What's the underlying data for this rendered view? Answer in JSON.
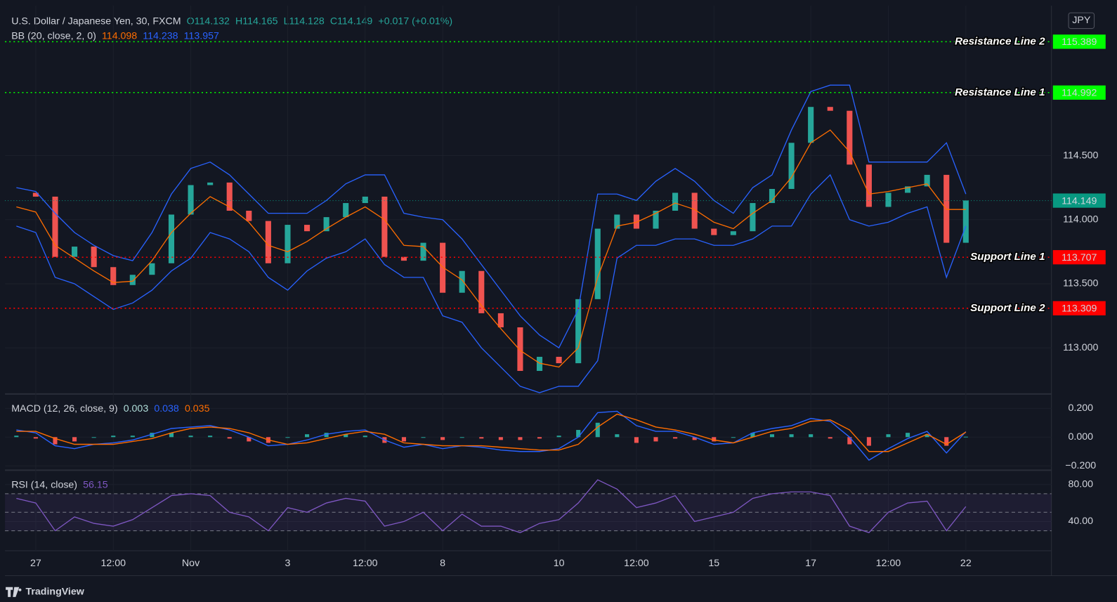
{
  "header": {
    "symbol": "U.S. Dollar / Japanese Yen, 30, FXCM",
    "ohlc": [
      "O114.132",
      "H114.165",
      "L114.128",
      "C114.149"
    ],
    "change": "+0.017 (+0.01%)"
  },
  "currency": "JPY",
  "branding": "TradingView",
  "chart_data": [
    {
      "type": "candlestick",
      "categories": [
        null,
        "27",
        null,
        null,
        null,
        "12:00",
        null,
        null,
        null,
        "Nov",
        null,
        null,
        null,
        null,
        "3",
        null,
        null,
        null,
        "12:00",
        null,
        null,
        null,
        "8",
        null,
        null,
        null,
        null,
        null,
        "10",
        null,
        null,
        null,
        "12:00",
        null,
        null,
        null,
        "15",
        null,
        null,
        null,
        null,
        "17",
        null,
        null,
        null,
        "12:00",
        null,
        null,
        null,
        "22"
      ],
      "ylim": [
        112.64,
        115.67
      ],
      "yticks": [
        {
          "value": 113,
          "label": "113.000"
        },
        {
          "value": 113.5,
          "label": "113.500"
        },
        {
          "value": 114,
          "label": "114.000"
        },
        {
          "value": 114.5,
          "label": "114.500"
        }
      ],
      "grid": true,
      "up_color": "#26a69a",
      "down_color": "#ef5350",
      "series": [
        {
          "color": "#26a69a",
          "values": [
            114.21,
            114.18,
            113.71,
            113.79,
            113.63,
            113.49,
            113.57,
            113.66,
            114.04,
            114.27,
            114.29,
            114.07,
            113.99,
            113.66,
            113.96,
            113.91,
            114.02,
            114.13,
            114.18,
            113.71,
            113.68,
            113.82,
            113.43,
            113.6,
            113.27,
            113.16,
            112.82,
            112.93,
            112.88,
            113.38,
            113.93,
            114.04,
            113.93,
            114.07,
            114.21,
            113.93,
            113.88,
            113.91,
            114.13,
            114.24,
            114.6,
            114.88,
            114.85,
            114.43,
            114.1,
            114.21,
            114.26,
            114.35,
            113.82,
            114.15
          ]
        },
        {
          "color": "#2962ff",
          "values": [
            114.25,
            114.22,
            114.05,
            113.9,
            113.8,
            113.72,
            113.68,
            113.9,
            114.2,
            114.4,
            114.45,
            114.35,
            114.2,
            114.05,
            114.05,
            114.05,
            114.15,
            114.28,
            114.35,
            114.35,
            114.05,
            114.02,
            114.0,
            113.85,
            113.65,
            113.45,
            113.25,
            113.1,
            113.0,
            113.3,
            114.2,
            114.2,
            114.15,
            114.3,
            114.4,
            114.3,
            114.15,
            114.05,
            114.25,
            114.35,
            114.7,
            115.0,
            115.05,
            115.05,
            114.45,
            114.45,
            114.45,
            114.45,
            114.6,
            114.2
          ]
        },
        {
          "color": "#ff6d00",
          "values": [
            114.1,
            114.06,
            113.8,
            113.7,
            113.6,
            113.51,
            113.52,
            113.68,
            113.9,
            114.05,
            114.18,
            114.1,
            113.98,
            113.8,
            113.75,
            113.83,
            113.93,
            114.02,
            114.1,
            114.0,
            113.8,
            113.79,
            113.63,
            113.53,
            113.33,
            113.15,
            112.98,
            112.88,
            112.85,
            113.0,
            113.55,
            113.95,
            113.98,
            114.05,
            114.13,
            114.08,
            113.98,
            113.93,
            114.05,
            114.15,
            114.33,
            114.6,
            114.7,
            114.53,
            114.2,
            114.22,
            114.25,
            114.28,
            114.08,
            114.08
          ]
        },
        {
          "color": "#2962ff",
          "values": [
            113.95,
            113.9,
            113.55,
            113.5,
            113.4,
            113.3,
            113.35,
            113.45,
            113.6,
            113.7,
            113.9,
            113.85,
            113.75,
            113.55,
            113.45,
            113.6,
            113.7,
            113.75,
            113.85,
            113.65,
            113.55,
            113.55,
            113.25,
            113.2,
            113.0,
            112.85,
            112.7,
            112.65,
            112.7,
            112.7,
            112.9,
            113.7,
            113.8,
            113.8,
            113.85,
            113.85,
            113.8,
            113.8,
            113.85,
            113.95,
            113.95,
            114.2,
            114.35,
            114.0,
            113.95,
            113.98,
            114.05,
            114.1,
            113.55,
            113.95
          ]
        }
      ],
      "indicator": {
        "title": "BB (20, close, 2, 0)",
        "values": [
          114.098,
          114.238,
          113.957
        ],
        "colors": [
          "#ff6d00",
          "#2962ff",
          "#2962ff"
        ]
      },
      "levels": [
        {
          "label": "Resistance Line 2",
          "value": 115.389,
          "color": "#00ff00",
          "text_color": "#000000"
        },
        {
          "label": "Resistance Line 1",
          "value": 114.992,
          "color": "#00ff00",
          "text_color": "#000000"
        },
        {
          "label": "Support Line 1",
          "value": 113.707,
          "color": "#ff0000",
          "text_color": "#ffffff"
        },
        {
          "label": "Support Line 2",
          "value": 113.309,
          "color": "#ff0000",
          "text_color": "#ffffff"
        }
      ],
      "last_price": {
        "value": 114.149,
        "color": "#089981"
      }
    },
    {
      "type": "macd",
      "title": "MACD (12, 26, close, 9)",
      "legend_values": [
        0.003,
        0.038,
        0.035
      ],
      "legend_colors": [
        "#b2dfdb",
        "#2962ff",
        "#ff6d00"
      ],
      "ylim": [
        -0.23,
        0.3
      ],
      "yticks": [
        {
          "value": 0.2,
          "label": "0.200"
        },
        {
          "value": 0,
          "label": "0.000"
        },
        {
          "value": -0.2,
          "label": "−0.200"
        }
      ],
      "series": [
        {
          "color": "#2962ff",
          "values": [
            0.05,
            0.03,
            -0.06,
            -0.08,
            -0.05,
            -0.04,
            -0.02,
            0.02,
            0.06,
            0.07,
            0.08,
            0.05,
            0.0,
            -0.06,
            -0.05,
            -0.02,
            0.02,
            0.04,
            0.05,
            -0.02,
            -0.07,
            -0.05,
            -0.08,
            -0.06,
            -0.07,
            -0.09,
            -0.1,
            -0.1,
            -0.08,
            0.0,
            0.17,
            0.18,
            0.08,
            0.04,
            0.04,
            0.0,
            -0.05,
            -0.04,
            0.03,
            0.06,
            0.08,
            0.13,
            0.11,
            0.0,
            -0.16,
            -0.08,
            -0.01,
            0.04,
            -0.11,
            0.038
          ]
        },
        {
          "color": "#ff6d00",
          "values": [
            0.04,
            0.04,
            -0.01,
            -0.05,
            -0.05,
            -0.05,
            -0.03,
            -0.01,
            0.03,
            0.06,
            0.07,
            0.06,
            0.03,
            -0.02,
            -0.05,
            -0.04,
            -0.01,
            0.02,
            0.04,
            0.02,
            -0.04,
            -0.05,
            -0.06,
            -0.06,
            -0.06,
            -0.07,
            -0.08,
            -0.09,
            -0.09,
            -0.05,
            0.07,
            0.16,
            0.12,
            0.07,
            0.05,
            0.02,
            -0.02,
            -0.04,
            0.0,
            0.04,
            0.06,
            0.11,
            0.12,
            0.05,
            -0.1,
            -0.1,
            -0.04,
            0.02,
            -0.05,
            0.035
          ]
        }
      ],
      "histogram": {
        "positive_color": "#26a69a",
        "negative_color": "#ef5350",
        "values": [
          0.01,
          -0.01,
          -0.05,
          -0.03,
          0,
          0.01,
          0.01,
          0.03,
          0.03,
          0.01,
          0.01,
          -0.01,
          -0.03,
          -0.04,
          0,
          0.02,
          0.03,
          0.02,
          0.01,
          -0.04,
          -0.03,
          0,
          -0.02,
          0,
          -0.01,
          -0.02,
          -0.02,
          -0.01,
          0.01,
          0.05,
          0.1,
          0.02,
          -0.04,
          -0.03,
          -0.01,
          -0.02,
          -0.03,
          0,
          0.03,
          0.02,
          0.02,
          0.02,
          -0.01,
          -0.05,
          -0.06,
          0.02,
          0.03,
          0.02,
          -0.06,
          0.003
        ]
      }
    },
    {
      "type": "rsi",
      "title": "RSI (14, close)",
      "legend_values": [
        56.15
      ],
      "legend_colors": [
        "#7e57c2"
      ],
      "ylim": [
        8.5,
        95.4
      ],
      "yticks": [
        {
          "value": 80,
          "label": "80.00"
        },
        {
          "value": 40,
          "label": "40.00"
        }
      ],
      "bands": [
        70,
        50,
        30
      ],
      "series": [
        {
          "color": "#7e57c2",
          "values": [
            65,
            60,
            30,
            45,
            38,
            35,
            42,
            55,
            68,
            70,
            68,
            50,
            45,
            30,
            55,
            50,
            60,
            65,
            62,
            35,
            40,
            50,
            30,
            48,
            35,
            35,
            28,
            38,
            42,
            60,
            85,
            75,
            55,
            60,
            68,
            40,
            45,
            50,
            65,
            70,
            72,
            72,
            68,
            35,
            28,
            50,
            60,
            62,
            30,
            56.15
          ]
        }
      ]
    }
  ]
}
